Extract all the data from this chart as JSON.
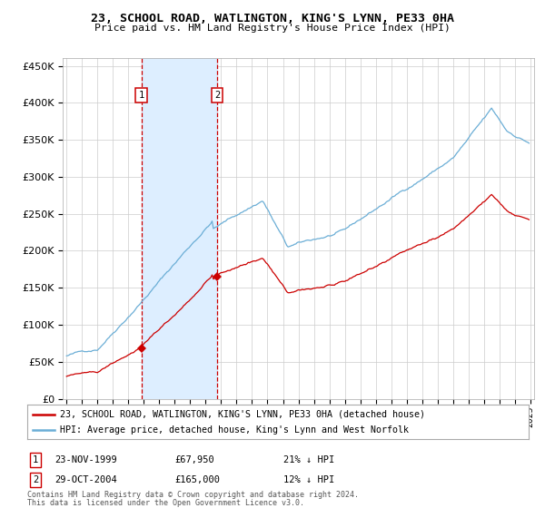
{
  "title": "23, SCHOOL ROAD, WATLINGTON, KING'S LYNN, PE33 0HA",
  "subtitle": "Price paid vs. HM Land Registry's House Price Index (HPI)",
  "sale1_price": 67950,
  "sale2_price": 165000,
  "legend_property": "23, SCHOOL ROAD, WATLINGTON, KING'S LYNN, PE33 0HA (detached house)",
  "legend_hpi": "HPI: Average price, detached house, King's Lynn and West Norfolk",
  "table_1_num": "1",
  "table_1_date": "23-NOV-1999",
  "table_1_price": "£67,950",
  "table_1_hpi": "21% ↓ HPI",
  "table_2_num": "2",
  "table_2_date": "29-OCT-2004",
  "table_2_price": "£165,000",
  "table_2_hpi": "12% ↓ HPI",
  "footnote_line1": "Contains HM Land Registry data © Crown copyright and database right 2024.",
  "footnote_line2": "This data is licensed under the Open Government Licence v3.0.",
  "hpi_color": "#6baed6",
  "property_color": "#cc0000",
  "highlight_color": "#ddeeff",
  "dashed_color": "#cc0000",
  "grid_color": "#cccccc",
  "yticks": [
    0,
    50000,
    100000,
    150000,
    200000,
    250000,
    300000,
    350000,
    400000,
    450000
  ]
}
